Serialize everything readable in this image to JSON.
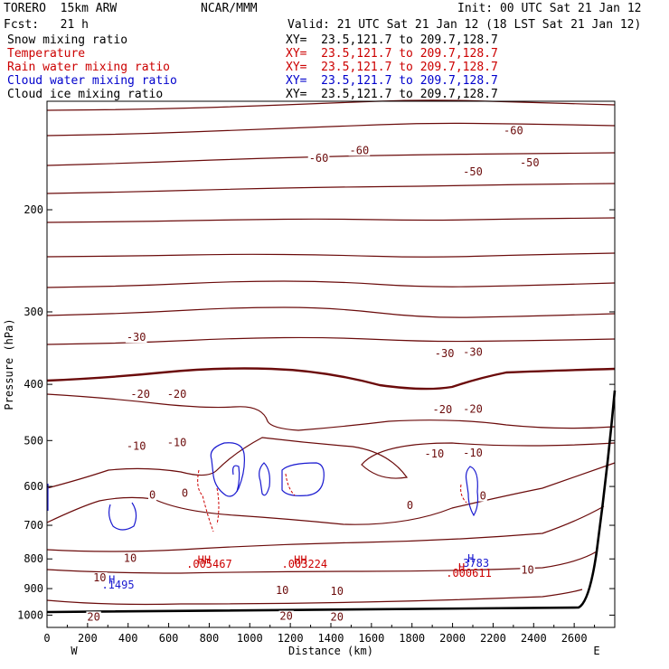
{
  "header": {
    "model": "TORERO  15km ARW",
    "center": "NCAR/MMM",
    "init": "Init: 00 UTC Sat 21 Jan 12",
    "fcst": "Fcst:   21 h",
    "valid": "Valid: 21 UTC Sat 21 Jan 12 (18 LST Sat 21 Jan 12)"
  },
  "fields": [
    {
      "name": "Snow mixing ratio",
      "xy": "XY=  23.5,121.7 to 209.7,128.7",
      "color": "#000000"
    },
    {
      "name": "Temperature",
      "xy": "XY=  23.5,121.7 to 209.7,128.7",
      "color": "#cc0000"
    },
    {
      "name": "Rain water mixing ratio",
      "xy": "XY=  23.5,121.7 to 209.7,128.7",
      "color": "#cc0000"
    },
    {
      "name": "Cloud water mixing ratio",
      "xy": "XY=  23.5,121.7 to 209.7,128.7",
      "color": "#0000cc"
    },
    {
      "name": "Cloud ice mixing ratio",
      "xy": "XY=  23.5,121.7 to 209.7,128.7",
      "color": "#000000"
    }
  ],
  "colors": {
    "temperature": "#6b0b0b",
    "cloud_water": "#1a1ad0",
    "rain": "#cc0000",
    "terrain": "#000000",
    "axis": "#000000"
  },
  "chart_data": {
    "type": "contour",
    "xlabel": "Distance (km)",
    "ylabel": "Pressure (hPa)",
    "xlim": [
      0,
      2800
    ],
    "ylim": [
      1050,
      130
    ],
    "y_scale": "log",
    "xticks": [
      0,
      200,
      400,
      600,
      800,
      1000,
      1200,
      1400,
      1600,
      1800,
      2000,
      2200,
      2400,
      2600
    ],
    "yticks": [
      200,
      300,
      400,
      500,
      600,
      700,
      800,
      900,
      1000
    ],
    "x_end_labels": {
      "left": "W",
      "right": "E"
    },
    "temperature_contour_labels": [
      {
        "text": "-60",
        "x": 1340,
        "p": 163
      },
      {
        "text": "-60",
        "x": 1540,
        "p": 158
      },
      {
        "text": "-60",
        "x": 2300,
        "p": 146
      },
      {
        "text": "-50",
        "x": 2100,
        "p": 172
      },
      {
        "text": "-50",
        "x": 2380,
        "p": 166
      },
      {
        "text": "-30",
        "x": 440,
        "p": 332
      },
      {
        "text": "-30",
        "x": 1960,
        "p": 354
      },
      {
        "text": "-30",
        "x": 2100,
        "p": 352
      },
      {
        "text": "-20",
        "x": 460,
        "p": 416
      },
      {
        "text": "-20",
        "x": 640,
        "p": 416
      },
      {
        "text": "-20",
        "x": 1950,
        "p": 442
      },
      {
        "text": "-20",
        "x": 2100,
        "p": 441
      },
      {
        "text": "-10",
        "x": 440,
        "p": 511
      },
      {
        "text": "-10",
        "x": 640,
        "p": 504
      },
      {
        "text": "-10",
        "x": 1910,
        "p": 527
      },
      {
        "text": "-10",
        "x": 2100,
        "p": 525
      },
      {
        "text": "0",
        "x": 520,
        "p": 621
      },
      {
        "text": "0",
        "x": 680,
        "p": 616
      },
      {
        "text": "0",
        "x": 1790,
        "p": 647
      },
      {
        "text": "0",
        "x": 2150,
        "p": 623
      },
      {
        "text": "10",
        "x": 410,
        "p": 798
      },
      {
        "text": "10",
        "x": 260,
        "p": 862
      },
      {
        "text": "10",
        "x": 1160,
        "p": 906
      },
      {
        "text": "10",
        "x": 1430,
        "p": 909
      },
      {
        "text": "10",
        "x": 2370,
        "p": 836
      },
      {
        "text": "20",
        "x": 230,
        "p": 1007
      },
      {
        "text": "20",
        "x": 1180,
        "p": 1004
      },
      {
        "text": "20",
        "x": 1430,
        "p": 1008
      }
    ],
    "cloud_water_labels": [
      {
        "text": "H",
        "x": 320,
        "p": 870
      },
      {
        "text": ".1495",
        "x": 350,
        "p": 887
      },
      {
        "text": "H",
        "x": 2090,
        "p": 800
      },
      {
        "text": ".3783",
        "x": 2100,
        "p": 814
      }
    ],
    "rain_labels": [
      {
        "text": "HH",
        "x": 775,
        "p": 803
      },
      {
        "text": ".005467",
        "x": 800,
        "p": 817
      },
      {
        "text": "HH",
        "x": 1250,
        "p": 803
      },
      {
        "text": ".003224",
        "x": 1270,
        "p": 817
      },
      {
        "text": "H",
        "x": 2045,
        "p": 828
      },
      {
        "text": ".000611",
        "x": 2080,
        "p": 846
      }
    ]
  }
}
